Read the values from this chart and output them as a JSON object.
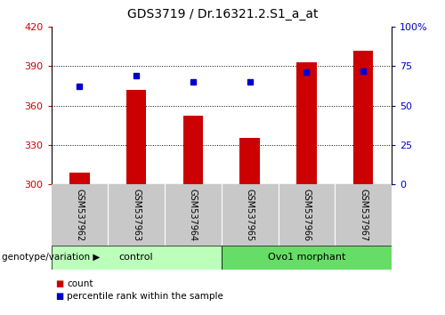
{
  "title": "GDS3719 / Dr.16321.2.S1_a_at",
  "categories": [
    "GSM537962",
    "GSM537963",
    "GSM537964",
    "GSM537965",
    "GSM537966",
    "GSM537967"
  ],
  "bar_values": [
    309,
    372,
    352,
    335,
    393,
    402
  ],
  "bar_base": 300,
  "percentile_values": [
    62,
    69,
    65,
    65,
    71,
    72
  ],
  "left_ylim": [
    300,
    420
  ],
  "right_ylim": [
    0,
    100
  ],
  "left_yticks": [
    300,
    330,
    360,
    390,
    420
  ],
  "right_yticks": [
    0,
    25,
    50,
    75,
    100
  ],
  "right_yticklabels": [
    "0",
    "25",
    "50",
    "75",
    "100%"
  ],
  "bar_color": "#cc0000",
  "marker_color": "#0000cc",
  "group_labels": [
    "control",
    "Ovo1 morphant"
  ],
  "group_ranges": [
    [
      0,
      3
    ],
    [
      3,
      6
    ]
  ],
  "group_color_light": "#bbffbb",
  "group_color_dark": "#66dd66",
  "genotype_label": "genotype/variation",
  "legend_bar_label": "count",
  "legend_marker_label": "percentile rank within the sample",
  "plot_bg_color": "#ffffff",
  "tick_label_area_color": "#c8c8c8",
  "title_fontsize": 10,
  "axis_fontsize": 8,
  "bar_width": 0.35
}
